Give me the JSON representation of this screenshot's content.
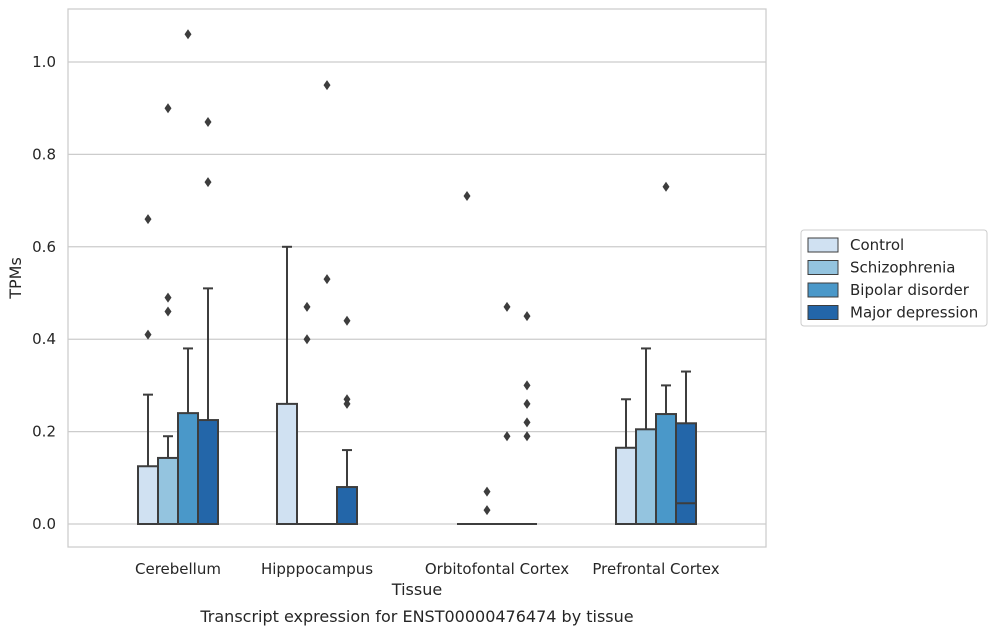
{
  "chart_data": {
    "type": "box",
    "xlabel": "Tissue",
    "ylabel": "TPMs",
    "caption": "Transcript expression for ENST00000476474 by tissue",
    "ylim": [
      -0.05,
      1.12
    ],
    "yticks": [
      "0.0",
      "0.2",
      "0.4",
      "0.6",
      "0.8",
      "1.0"
    ],
    "ytick_values": [
      0.0,
      0.2,
      0.4,
      0.6,
      0.8,
      1.0
    ],
    "grid": "horizontal",
    "legend_position": "right",
    "categories": [
      "Cerebellum",
      "Hipppocampus",
      "Orbitofontal Cortex",
      "Prefrontal Cortex"
    ],
    "series": [
      {
        "name": "Control",
        "color": "#d0e1f2",
        "boxes": [
          {
            "q1": 0.0,
            "median": 0.0,
            "q3": 0.125,
            "whislo": 0.0,
            "whishi": 0.28,
            "fliers": [
              0.41,
              0.66
            ]
          },
          {
            "q1": 0.0,
            "median": 0.0,
            "q3": 0.26,
            "whislo": 0.0,
            "whishi": 0.6,
            "fliers": []
          },
          {
            "q1": 0.0,
            "median": 0.0,
            "q3": 0.0,
            "whislo": 0.0,
            "whishi": 0.0,
            "fliers": [
              0.71
            ]
          },
          {
            "q1": 0.0,
            "median": 0.0,
            "q3": 0.165,
            "whislo": 0.0,
            "whishi": 0.27,
            "fliers": []
          }
        ]
      },
      {
        "name": "Schizophrenia",
        "color": "#94c4df",
        "boxes": [
          {
            "q1": 0.0,
            "median": 0.0,
            "q3": 0.143,
            "whislo": 0.0,
            "whishi": 0.19,
            "fliers": [
              0.46,
              0.49,
              0.9
            ]
          },
          {
            "q1": 0.0,
            "median": 0.0,
            "q3": 0.0,
            "whislo": 0.0,
            "whishi": 0.0,
            "fliers": [
              0.4,
              0.47
            ]
          },
          {
            "q1": 0.0,
            "median": 0.0,
            "q3": 0.0,
            "whislo": 0.0,
            "whishi": 0.0,
            "fliers": [
              0.03,
              0.07
            ]
          },
          {
            "q1": 0.0,
            "median": 0.0,
            "q3": 0.205,
            "whislo": 0.0,
            "whishi": 0.38,
            "fliers": []
          }
        ]
      },
      {
        "name": "Bipolar disorder",
        "color": "#4a98c9",
        "boxes": [
          {
            "q1": 0.0,
            "median": 0.0,
            "q3": 0.24,
            "whislo": 0.0,
            "whishi": 0.38,
            "fliers": [
              1.06
            ]
          },
          {
            "q1": 0.0,
            "median": 0.0,
            "q3": 0.0,
            "whislo": 0.0,
            "whishi": 0.0,
            "fliers": [
              0.53,
              0.95
            ]
          },
          {
            "q1": 0.0,
            "median": 0.0,
            "q3": 0.0,
            "whislo": 0.0,
            "whishi": 0.0,
            "fliers": [
              0.19,
              0.47
            ]
          },
          {
            "q1": 0.0,
            "median": 0.0,
            "q3": 0.238,
            "whislo": 0.0,
            "whishi": 0.3,
            "fliers": [
              0.73
            ]
          }
        ]
      },
      {
        "name": "Major depression",
        "color": "#2366a9",
        "boxes": [
          {
            "q1": 0.0,
            "median": 0.0,
            "q3": 0.225,
            "whislo": 0.0,
            "whishi": 0.51,
            "fliers": [
              0.74,
              0.87
            ]
          },
          {
            "q1": 0.0,
            "median": 0.0,
            "q3": 0.08,
            "whislo": 0.0,
            "whishi": 0.16,
            "fliers": [
              0.26,
              0.27,
              0.44
            ]
          },
          {
            "q1": 0.0,
            "median": 0.0,
            "q3": 0.0,
            "whislo": 0.0,
            "whishi": 0.0,
            "fliers": [
              0.19,
              0.22,
              0.45,
              0.26,
              0.3
            ]
          },
          {
            "q1": 0.0,
            "median": 0.045,
            "q3": 0.218,
            "whislo": 0.0,
            "whishi": 0.33,
            "fliers": []
          }
        ]
      }
    ]
  }
}
